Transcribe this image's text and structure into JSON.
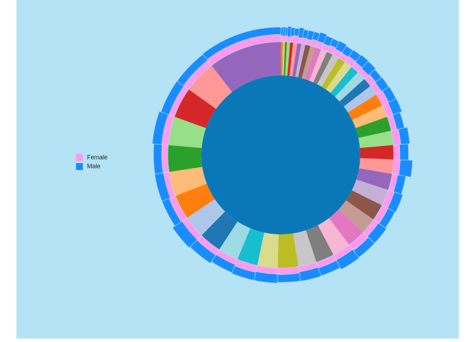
{
  "chart_data": {
    "type": "radial-stacked",
    "categories": [
      null,
      null,
      null,
      null,
      null,
      null,
      null,
      null,
      null,
      null,
      null,
      null,
      null,
      null,
      null,
      null,
      null,
      null,
      null,
      null,
      null,
      null,
      null,
      null,
      null,
      null,
      null,
      null,
      null,
      null,
      null,
      null,
      null,
      null,
      null,
      null,
      null,
      null,
      null,
      null,
      null,
      null,
      null,
      null,
      null,
      null,
      null
    ],
    "values": [
      1,
      1,
      1,
      1.5,
      1.5,
      2,
      2,
      2,
      2.5,
      2.5,
      3,
      3,
      3,
      3.5,
      3.5,
      4,
      4,
      4.5,
      4.5,
      5,
      6,
      6,
      7,
      7,
      7,
      7,
      8,
      8,
      8,
      8,
      9,
      9,
      9,
      9,
      10,
      10,
      10,
      10,
      11,
      11,
      12,
      12,
      13,
      14,
      15,
      16,
      36
    ],
    "colors": [
      "#ff7f0e",
      "#ffbb78",
      "#2ca02c",
      "#98df8a",
      "#d62728",
      "#ff9896",
      "#9467bd",
      "#c5b0d5",
      "#8c564b",
      "#c49c94",
      "#e377c2",
      "#f7b6d2",
      "#7f7f7f",
      "#c7c7c7",
      "#bcbd22",
      "#dbdb8d",
      "#17becf",
      "#9edae5",
      "#1f77b4",
      "#aec7e8",
      "#ff7f0e",
      "#ffbb78",
      "#2ca02c",
      "#98df8a",
      "#d62728",
      "#ff9896",
      "#9467bd",
      "#c5b0d5",
      "#8c564b",
      "#c49c94",
      "#e377c2",
      "#f7b6d2",
      "#7f7f7f",
      "#c7c7c7",
      "#bcbd22",
      "#dbdb8d",
      "#17becf",
      "#9edae5",
      "#1f77b4",
      "#aec7e8",
      "#ff7f0e",
      "#ffbb78",
      "#2ca02c",
      "#98df8a",
      "#d62728",
      "#ff9896",
      "#9467bd"
    ],
    "series": [
      {
        "name": "Female",
        "color": "#ff99ee",
        "values": [
          30,
          28,
          32,
          26,
          30,
          34,
          28,
          30,
          27,
          33,
          31,
          29,
          35,
          30,
          28,
          33,
          30,
          26,
          32,
          29,
          34,
          30,
          28,
          36,
          30,
          32,
          27,
          31,
          33,
          29,
          35,
          28,
          30,
          26,
          32,
          30,
          34,
          28,
          31,
          29,
          33,
          27,
          30,
          32,
          28,
          31,
          36
        ]
      },
      {
        "name": "Male",
        "color": "#1a8cff",
        "values": [
          40,
          45,
          38,
          50,
          42,
          36,
          48,
          40,
          44,
          38,
          46,
          42,
          35,
          44,
          40,
          38,
          45,
          48,
          36,
          42,
          40,
          46,
          38,
          44,
          42,
          60,
          40,
          44,
          38,
          48,
          42,
          52,
          40,
          46,
          38,
          44,
          40,
          42,
          48,
          56,
          38,
          44,
          40,
          46,
          42,
          38,
          36
        ]
      }
    ]
  }
}
